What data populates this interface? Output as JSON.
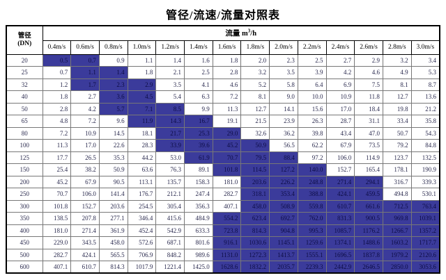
{
  "title": "管径/流速/流量对照表",
  "chart_data": {
    "type": "table",
    "title": "管径/流速/流量对照表",
    "corner_header": {
      "line1": "管径",
      "line2": "(DN)"
    },
    "group_header": {
      "prefix": "流量 m",
      "sup": "3",
      "suffix": "/h"
    },
    "columns": [
      "0.4m/s",
      "0.6m/s",
      "0.8m/s",
      "1.0m/s",
      "1.2m/s",
      "1.4m/s",
      "1.6m/s",
      "1.8m/s",
      "2.0m/s",
      "2.2m/s",
      "2.4m/s",
      "2.6m/s",
      "2.8m/s",
      "3.0m/s"
    ],
    "rows": [
      {
        "dn": "20",
        "values": [
          "0.5",
          "0.7",
          "0.9",
          "1.1",
          "1.4",
          "1.6",
          "1.8",
          "2.0",
          "2.3",
          "2.5",
          "2.7",
          "2.9",
          "3.2",
          "3.4"
        ],
        "highlight_cols": [
          0,
          1
        ]
      },
      {
        "dn": "25",
        "values": [
          "0.7",
          "1.1",
          "1.4",
          "1.8",
          "2.1",
          "2.5",
          "2.8",
          "3.2",
          "3.5",
          "3.9",
          "4.2",
          "4.6",
          "4.9",
          "5.3"
        ],
        "highlight_cols": [
          1,
          2
        ]
      },
      {
        "dn": "32",
        "values": [
          "1.2",
          "1.7",
          "2.3",
          "2.9",
          "3.5",
          "4.1",
          "4.6",
          "5.2",
          "5.8",
          "6.4",
          "6.9",
          "7.5",
          "8.1",
          "8.7"
        ],
        "highlight_cols": [
          1,
          2,
          3
        ]
      },
      {
        "dn": "40",
        "values": [
          "1.8",
          "2.7",
          "3.6",
          "4.5",
          "5.4",
          "6.3",
          "7.2",
          "8.1",
          "9.0",
          "10.0",
          "10.9",
          "11.8",
          "12.7",
          "13.6"
        ],
        "highlight_cols": [
          2,
          3
        ]
      },
      {
        "dn": "50",
        "values": [
          "2.8",
          "4.2",
          "5.7",
          "7.1",
          "8.5",
          "9.9",
          "11.3",
          "12.7",
          "14.1",
          "15.6",
          "17.0",
          "18.4",
          "19.8",
          "21.2"
        ],
        "highlight_cols": [
          2,
          3,
          4
        ]
      },
      {
        "dn": "65",
        "values": [
          "4.8",
          "7.2",
          "9.6",
          "11.9",
          "14.3",
          "16.7",
          "19.1",
          "21.5",
          "23.9",
          "26.3",
          "28.7",
          "31.1",
          "33.4",
          "35.8"
        ],
        "highlight_cols": [
          3,
          4,
          5
        ]
      },
      {
        "dn": "80",
        "values": [
          "7.2",
          "10.9",
          "14.5",
          "18.1",
          "21.7",
          "25.3",
          "29.0",
          "32.6",
          "36.2",
          "39.8",
          "43.4",
          "47.0",
          "50.7",
          "54.3"
        ],
        "highlight_cols": [
          4,
          5,
          6
        ]
      },
      {
        "dn": "100",
        "values": [
          "11.3",
          "17.0",
          "22.6",
          "28.3",
          "33.9",
          "39.6",
          "45.2",
          "50.9",
          "56.5",
          "62.2",
          "67.9",
          "73.5",
          "79.2",
          "84.8"
        ],
        "highlight_cols": [
          4,
          5,
          6,
          7
        ]
      },
      {
        "dn": "125",
        "values": [
          "17.7",
          "26.5",
          "35.3",
          "44.2",
          "53.0",
          "61.9",
          "70.7",
          "79.5",
          "88.4",
          "97.2",
          "106.0",
          "114.9",
          "123.7",
          "132.5"
        ],
        "highlight_cols": [
          5,
          6,
          7,
          8
        ]
      },
      {
        "dn": "150",
        "values": [
          "25.4",
          "38.2",
          "50.9",
          "63.6",
          "76.3",
          "89.1",
          "101.8",
          "114.5",
          "127.2",
          "140.0",
          "152.7",
          "165.4",
          "178.1",
          "190.9"
        ],
        "highlight_cols": [
          6,
          7,
          8,
          9
        ]
      },
      {
        "dn": "200",
        "values": [
          "45.2",
          "67.9",
          "90.5",
          "113.1",
          "135.7",
          "158.3",
          "181.0",
          "203.6",
          "226.2",
          "248.8",
          "271.4",
          "294.1",
          "316.7",
          "339.3"
        ],
        "highlight_cols": [
          7,
          8,
          9,
          10,
          11
        ]
      },
      {
        "dn": "250",
        "values": [
          "70.7",
          "106.0",
          "141.4",
          "176.7",
          "212.1",
          "247.4",
          "282.7",
          "318.1",
          "353.4",
          "388.8",
          "424.1",
          "459.5",
          "494.8",
          "530.1"
        ],
        "highlight_cols": [
          7,
          8,
          9,
          10,
          11
        ]
      },
      {
        "dn": "300",
        "values": [
          "101.8",
          "152.7",
          "203.6",
          "254.5",
          "305.4",
          "356.3",
          "407.1",
          "458.0",
          "508.9",
          "559.8",
          "610.7",
          "661.6",
          "712.5",
          "763.4"
        ],
        "highlight_cols": [
          7,
          8,
          9,
          10,
          11,
          12,
          13
        ]
      },
      {
        "dn": "350",
        "values": [
          "138.5",
          "207.8",
          "277.1",
          "346.4",
          "415.6",
          "484.9",
          "554.2",
          "623.4",
          "692.7",
          "762.0",
          "831.3",
          "900.5",
          "969.8",
          "1039.1"
        ],
        "highlight_cols": [
          6,
          7,
          8,
          9,
          10,
          11,
          12,
          13
        ]
      },
      {
        "dn": "400",
        "values": [
          "181.0",
          "271.4",
          "361.9",
          "452.4",
          "542.9",
          "633.3",
          "723.8",
          "814.3",
          "904.8",
          "995.3",
          "1085.7",
          "1176.2",
          "1266.7",
          "1357.2"
        ],
        "highlight_cols": [
          6,
          7,
          8,
          9,
          10,
          11,
          12,
          13
        ]
      },
      {
        "dn": "450",
        "values": [
          "229.0",
          "343.5",
          "458.0",
          "572.6",
          "687.1",
          "801.6",
          "916.1",
          "1030.6",
          "1145.1",
          "1259.6",
          "1374.1",
          "1488.6",
          "1603.2",
          "1717.7"
        ],
        "highlight_cols": [
          6,
          7,
          8,
          9,
          10,
          11,
          12,
          13
        ]
      },
      {
        "dn": "500",
        "values": [
          "282.7",
          "424.1",
          "565.5",
          "706.9",
          "848.2",
          "989.6",
          "1131.0",
          "1272.3",
          "1413.7",
          "1555.1",
          "1696.5",
          "1837.8",
          "1979.2",
          "2120.6"
        ],
        "highlight_cols": [
          6,
          7,
          8,
          9,
          10,
          11,
          12,
          13
        ]
      },
      {
        "dn": "600",
        "values": [
          "407.1",
          "610.7",
          "814.3",
          "1017.9",
          "1221.4",
          "1425.0",
          "1628.6",
          "1832.2",
          "2035.7",
          "2239.3",
          "2442.9",
          "2646.5",
          "2850.0",
          "3053.6"
        ],
        "highlight_cols": [
          6,
          7,
          8,
          9,
          10,
          11,
          12,
          13
        ]
      }
    ]
  },
  "colors": {
    "highlight_bg": "#3b3b9b",
    "highlight_text": "#0d0d45",
    "cell_text": "#2a2a4e",
    "grid_line": "#777777",
    "outer_border": "#000000"
  }
}
